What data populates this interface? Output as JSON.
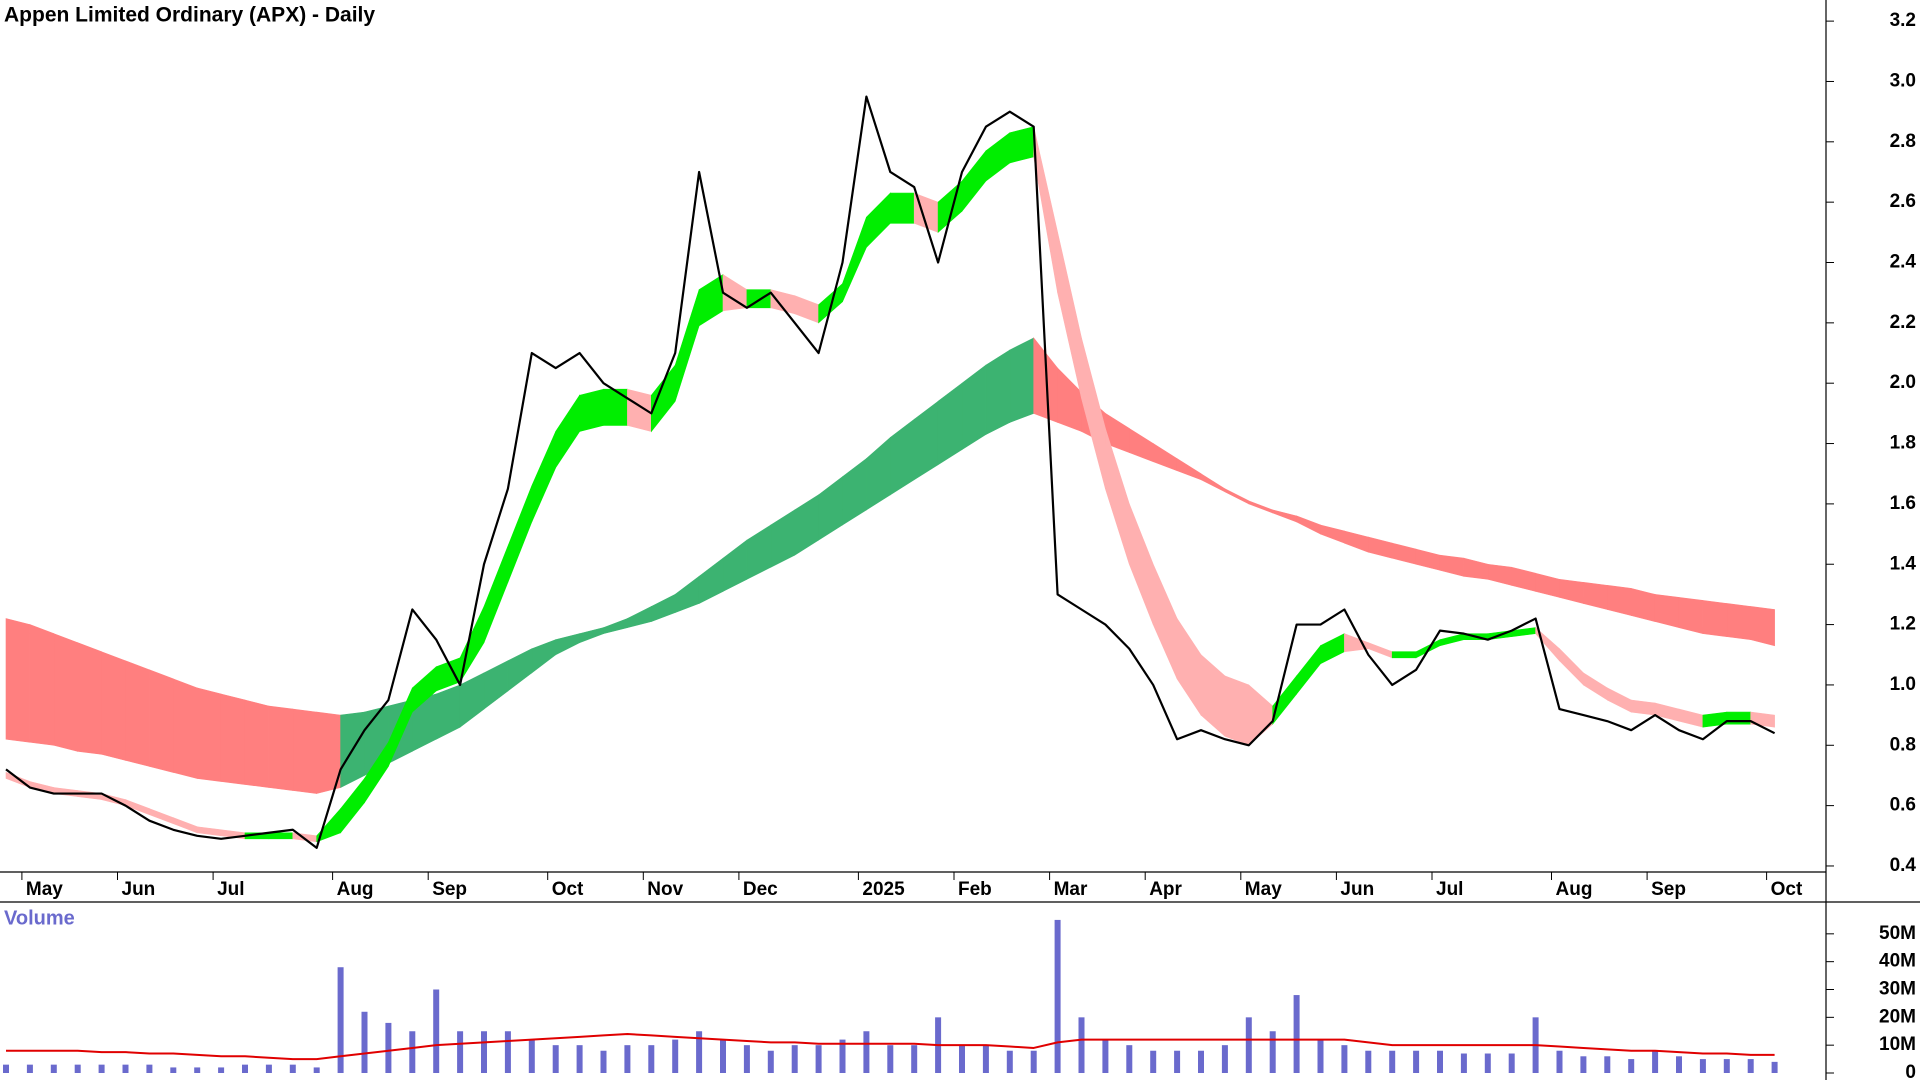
{
  "chart_data": [
    {
      "type": "line",
      "title": "Appen Limited Ordinary (APX) - Daily",
      "categories": [
        null,
        "May",
        null,
        null,
        null,
        "Jun",
        null,
        null,
        null,
        "Jul",
        null,
        null,
        null,
        null,
        "Aug",
        null,
        null,
        null,
        "Sep",
        null,
        null,
        null,
        null,
        "Oct",
        null,
        null,
        null,
        "Nov",
        null,
        null,
        null,
        "Dec",
        null,
        null,
        null,
        null,
        "2025",
        null,
        null,
        null,
        "Feb",
        null,
        null,
        null,
        "Mar",
        null,
        null,
        null,
        "Apr",
        null,
        null,
        null,
        "May",
        null,
        null,
        null,
        "Jun",
        null,
        null,
        null,
        "Jul",
        null,
        null,
        null,
        null,
        "Aug",
        null,
        null,
        null,
        "Sep",
        null,
        null,
        null,
        null,
        "Oct"
      ],
      "series": [
        {
          "color": "#000000",
          "values": [
            0.72,
            0.66,
            0.64,
            0.64,
            0.64,
            0.6,
            0.55,
            0.52,
            0.5,
            0.49,
            0.5,
            0.51,
            0.52,
            0.46,
            0.72,
            0.85,
            0.95,
            1.25,
            1.15,
            1.0,
            1.4,
            1.65,
            2.1,
            2.05,
            2.1,
            2.0,
            1.95,
            1.9,
            2.1,
            2.7,
            2.3,
            2.25,
            2.3,
            2.2,
            2.1,
            2.4,
            2.95,
            2.7,
            2.65,
            2.4,
            2.7,
            2.85,
            2.9,
            2.85,
            1.3,
            1.25,
            1.2,
            1.12,
            1.0,
            0.82,
            0.85,
            0.82,
            0.8,
            0.88,
            1.2,
            1.2,
            1.25,
            1.1,
            1.0,
            1.05,
            1.18,
            1.17,
            1.15,
            1.18,
            1.22,
            0.92,
            0.9,
            0.88,
            0.85,
            0.9,
            0.85,
            0.82,
            0.88,
            0.88,
            0.84
          ]
        }
      ],
      "bands": [
        {
          "up_color": "#3cb371",
          "down_color": "#ff7f7f",
          "upper": [
            1.22,
            1.2,
            1.17,
            1.14,
            1.11,
            1.08,
            1.05,
            1.02,
            0.99,
            0.97,
            0.95,
            0.93,
            0.92,
            0.91,
            0.9,
            0.91,
            0.93,
            0.95,
            0.97,
            1.0,
            1.04,
            1.08,
            1.12,
            1.15,
            1.17,
            1.19,
            1.22,
            1.26,
            1.3,
            1.36,
            1.42,
            1.48,
            1.53,
            1.58,
            1.63,
            1.69,
            1.75,
            1.82,
            1.88,
            1.94,
            2.0,
            2.06,
            2.11,
            2.15,
            2.05,
            1.97,
            1.9,
            1.85,
            1.8,
            1.75,
            1.7,
            1.65,
            1.61,
            1.58,
            1.56,
            1.53,
            1.51,
            1.49,
            1.47,
            1.45,
            1.43,
            1.42,
            1.4,
            1.39,
            1.37,
            1.35,
            1.34,
            1.33,
            1.32,
            1.3,
            1.29,
            1.28,
            1.27,
            1.26,
            1.25
          ],
          "lower": [
            0.82,
            0.81,
            0.8,
            0.78,
            0.77,
            0.75,
            0.73,
            0.71,
            0.69,
            0.68,
            0.67,
            0.66,
            0.65,
            0.64,
            0.66,
            0.7,
            0.74,
            0.78,
            0.82,
            0.86,
            0.92,
            0.98,
            1.04,
            1.1,
            1.14,
            1.17,
            1.19,
            1.21,
            1.24,
            1.27,
            1.31,
            1.35,
            1.39,
            1.43,
            1.48,
            1.53,
            1.58,
            1.63,
            1.68,
            1.73,
            1.78,
            1.83,
            1.87,
            1.9,
            1.87,
            1.84,
            1.8,
            1.77,
            1.74,
            1.71,
            1.68,
            1.64,
            1.6,
            1.57,
            1.54,
            1.5,
            1.47,
            1.44,
            1.42,
            1.4,
            1.38,
            1.36,
            1.35,
            1.33,
            1.31,
            1.29,
            1.27,
            1.25,
            1.23,
            1.21,
            1.19,
            1.17,
            1.16,
            1.15,
            1.13
          ]
        },
        {
          "up_color": "#00ee00",
          "down_color": "#ffb0b0",
          "upper": [
            0.71,
            0.68,
            0.66,
            0.65,
            0.64,
            0.62,
            0.59,
            0.56,
            0.53,
            0.52,
            0.51,
            0.51,
            0.51,
            0.5,
            0.59,
            0.69,
            0.81,
            0.99,
            1.06,
            1.09,
            1.26,
            1.46,
            1.66,
            1.84,
            1.96,
            1.98,
            1.98,
            1.96,
            2.06,
            2.31,
            2.36,
            2.31,
            2.31,
            2.29,
            2.26,
            2.33,
            2.55,
            2.63,
            2.63,
            2.6,
            2.67,
            2.77,
            2.83,
            2.85,
            2.5,
            2.15,
            1.85,
            1.6,
            1.4,
            1.22,
            1.1,
            1.03,
            1.0,
            0.93,
            1.03,
            1.13,
            1.17,
            1.14,
            1.11,
            1.11,
            1.15,
            1.17,
            1.17,
            1.18,
            1.19,
            1.12,
            1.04,
            0.99,
            0.95,
            0.94,
            0.92,
            0.9,
            0.91,
            0.91,
            0.9
          ],
          "lower": [
            0.69,
            0.66,
            0.64,
            0.63,
            0.62,
            0.6,
            0.57,
            0.54,
            0.51,
            0.5,
            0.49,
            0.49,
            0.49,
            0.48,
            0.51,
            0.61,
            0.73,
            0.91,
            0.98,
            1.01,
            1.14,
            1.34,
            1.54,
            1.72,
            1.84,
            1.86,
            1.86,
            1.84,
            1.94,
            2.19,
            2.24,
            2.25,
            2.25,
            2.23,
            2.2,
            2.27,
            2.45,
            2.53,
            2.53,
            2.5,
            2.57,
            2.67,
            2.73,
            2.75,
            2.3,
            1.95,
            1.65,
            1.4,
            1.2,
            1.02,
            0.9,
            0.83,
            0.8,
            0.87,
            0.97,
            1.07,
            1.11,
            1.12,
            1.09,
            1.09,
            1.13,
            1.15,
            1.15,
            1.16,
            1.17,
            1.08,
            1.0,
            0.95,
            0.91,
            0.9,
            0.88,
            0.86,
            0.87,
            0.87,
            0.86
          ]
        }
      ],
      "ylim": [
        0.38,
        3.27
      ],
      "yticks": [
        0.4,
        0.6,
        0.8,
        {
          "value": 1.0,
          "label": "1.0"
        },
        1.2,
        1.4,
        1.6,
        1.8,
        {
          "value": 2.0,
          "label": "2.0"
        },
        2.2,
        2.4,
        2.6,
        2.8,
        {
          "value": 3.0,
          "label": "3.0"
        },
        3.2
      ]
    },
    {
      "type": "bar",
      "title": "Volume",
      "color": "#6a6acd",
      "values": [
        3,
        3,
        3,
        3,
        3,
        3,
        3,
        2,
        2,
        2,
        3,
        3,
        3,
        2,
        38,
        22,
        18,
        15,
        30,
        15,
        15,
        15,
        12,
        10,
        10,
        8,
        10,
        10,
        12,
        15,
        12,
        10,
        8,
        10,
        10,
        12,
        15,
        10,
        10,
        20,
        10,
        10,
        8,
        8,
        55,
        20,
        12,
        10,
        8,
        8,
        8,
        10,
        20,
        15,
        28,
        12,
        10,
        8,
        8,
        8,
        8,
        7,
        7,
        7,
        20,
        8,
        6,
        6,
        5,
        8,
        6,
        5,
        5,
        5,
        4
      ],
      "series": [
        {
          "color": "#e00000",
          "values": [
            8,
            8,
            8,
            8,
            7.5,
            7.5,
            7,
            7,
            6.5,
            6,
            6,
            5.5,
            5,
            5,
            6,
            7,
            8,
            9,
            10,
            10.5,
            11,
            11.5,
            12,
            12.5,
            13,
            13.5,
            14,
            13.5,
            13,
            12.5,
            12,
            11.5,
            11,
            11,
            10.5,
            10.5,
            10.5,
            10.5,
            10.5,
            10,
            10,
            10,
            9.5,
            9,
            11,
            12,
            12,
            12,
            12,
            12,
            12,
            12,
            12,
            12,
            12,
            12,
            12,
            11,
            10,
            10,
            10,
            10,
            10,
            10,
            10,
            9.5,
            9,
            8.5,
            8,
            8,
            7.5,
            7,
            7,
            6.5,
            6.5
          ]
        }
      ],
      "ylim": [
        0,
        60
      ],
      "yticks": [
        0,
        {
          "value": 10,
          "label": "10M"
        },
        {
          "value": 20,
          "label": "20M"
        },
        {
          "value": 30,
          "label": "30M"
        },
        {
          "value": 40,
          "label": "40M"
        },
        {
          "value": 50,
          "label": "50M"
        }
      ]
    }
  ]
}
